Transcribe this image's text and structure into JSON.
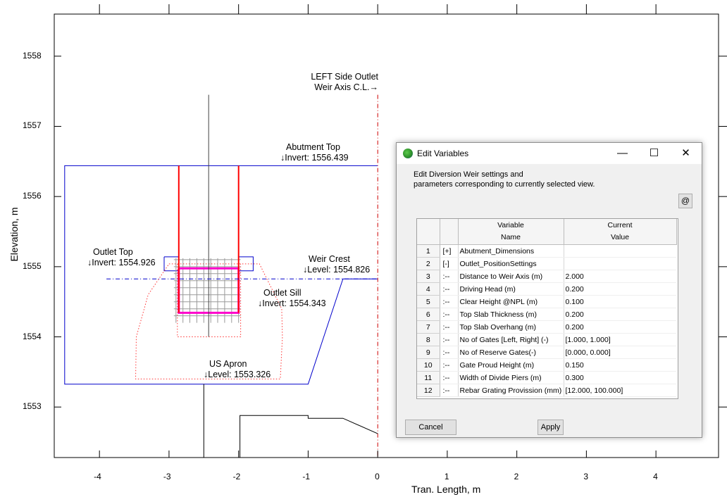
{
  "chart_data": {
    "type": "diagram",
    "xlabel": "Tran. Length, m",
    "ylabel": "Elevation, m",
    "xlim": [
      -4.65,
      4.9
    ],
    "ylim": [
      1552.28,
      1558.6
    ],
    "x_ticks": [
      -4,
      -3,
      -2,
      -1,
      0,
      1,
      2,
      3,
      4
    ],
    "y_ticks": [
      1553,
      1554,
      1555,
      1556,
      1557,
      1558
    ],
    "annotations": [
      {
        "id": "left-outlet",
        "lines": [
          "LEFT Side Outlet",
          "Weir Axis C.L.→"
        ]
      },
      {
        "id": "abutment-top",
        "lines": [
          "Abutment Top",
          "↓Invert: 1556.439"
        ]
      },
      {
        "id": "outlet-top",
        "lines": [
          "Outlet Top",
          "↓Invert: 1554.926"
        ]
      },
      {
        "id": "weir-crest",
        "lines": [
          "Weir Crest",
          "↓Level: 1554.826"
        ]
      },
      {
        "id": "outlet-sill",
        "lines": [
          "Outlet Sill",
          "↓Invert: 1554.343"
        ]
      },
      {
        "id": "us-apron",
        "lines": [
          "US Apron",
          "↓Level: 1553.326"
        ]
      }
    ],
    "levels": {
      "abutment_top": 1556.439,
      "outlet_top": 1554.926,
      "weir_crest": 1554.826,
      "outlet_sill": 1554.343,
      "us_apron": 1553.326
    },
    "colors": {
      "abutment": "#0000cc",
      "walls": "#ff0000",
      "outlet": "#ff00cc",
      "grating": "#9a9a9a",
      "axis_cl": "#cc0000",
      "crest": "#0000cc"
    }
  },
  "dialog": {
    "title": "Edit Variables",
    "minimize": "—",
    "maximize": "☐",
    "close": "✕",
    "description": [
      "Edit Diversion Weir settings and",
      "parameters corresponding to currently selected view."
    ],
    "at_button": "@",
    "columns": {
      "name": [
        "Variable",
        "Name"
      ],
      "value": [
        "Current",
        "Value"
      ]
    },
    "rows": [
      {
        "n": "1",
        "tree": "[+]",
        "name": "Abutment_Dimensions",
        "value": ""
      },
      {
        "n": "2",
        "tree": "[-]",
        "name": "Outlet_PositionSettings",
        "value": ""
      },
      {
        "n": "3",
        "tree": ":--",
        "name": "Distance to Weir Axis (m)",
        "value": "2.000"
      },
      {
        "n": "4",
        "tree": ":--",
        "name": "Driving Head (m)",
        "value": "0.200"
      },
      {
        "n": "5",
        "tree": ":--",
        "name": "Clear Height @NPL (m)",
        "value": "0.100"
      },
      {
        "n": "6",
        "tree": ":--",
        "name": "Top Slab Thickness (m)",
        "value": "0.200"
      },
      {
        "n": "7",
        "tree": ":--",
        "name": "Top Slab Overhang (m)",
        "value": "0.200"
      },
      {
        "n": "8",
        "tree": ":--",
        "name": "No of Gates [Left, Right] (-)",
        "value": "[1.000, 1.000]"
      },
      {
        "n": "9",
        "tree": ":--",
        "name": "No of Reserve Gates(-)",
        "value": "[0.000, 0.000]"
      },
      {
        "n": "10",
        "tree": ":--",
        "name": "Gate Proud Height (m)",
        "value": "0.150"
      },
      {
        "n": "11",
        "tree": ":--",
        "name": "Width of Divide Piers (m)",
        "value": "0.300"
      },
      {
        "n": "12",
        "tree": ":--",
        "name": "Rebar Grating Provission (mm)",
        "value": "[12.000, 100.000]"
      }
    ],
    "cancel_label": "Cancel",
    "apply_label": "Apply"
  }
}
